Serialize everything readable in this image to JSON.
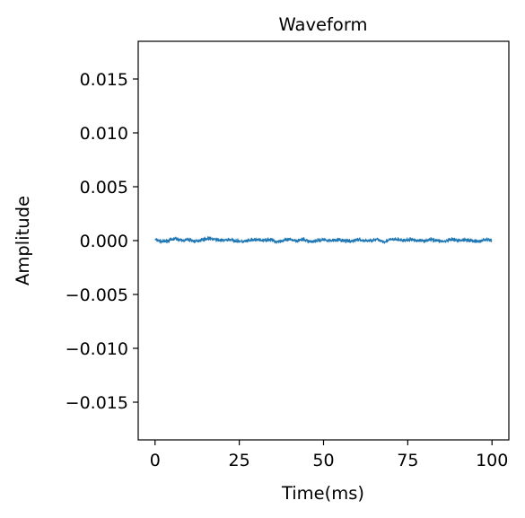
{
  "chart_data": {
    "type": "line",
    "title": "Waveform",
    "xlabel": "Time(ms)",
    "ylabel": "Amplitude",
    "xlim": [
      -5,
      105
    ],
    "ylim": [
      -0.0185,
      0.0185
    ],
    "xticks": [
      0,
      25,
      50,
      75,
      100
    ],
    "xtick_labels": [
      "0",
      "25",
      "50",
      "75",
      "100"
    ],
    "yticks": [
      -0.015,
      -0.01,
      -0.005,
      0.0,
      0.005,
      0.01,
      0.015
    ],
    "ytick_labels": [
      "−0.015",
      "−0.010",
      "−0.005",
      "0.000",
      "0.005",
      "0.010",
      "0.015"
    ],
    "grid": false,
    "series": [
      {
        "color": "#1f77b4",
        "x": [
          0,
          2,
          4,
          6,
          8,
          10,
          12,
          14,
          16,
          18,
          20,
          22,
          24,
          26,
          28,
          30,
          32,
          34,
          36,
          38,
          40,
          42,
          44,
          46,
          48,
          50,
          52,
          54,
          56,
          58,
          60,
          62,
          64,
          66,
          68,
          70,
          72,
          74,
          76,
          78,
          80,
          82,
          84,
          86,
          88,
          90,
          92,
          94,
          96,
          98,
          100
        ],
        "values": [
          0.0001,
          -0.0001,
          0.0,
          0.0002,
          0.0,
          0.0001,
          -0.0001,
          0.0001,
          0.0002,
          0.0001,
          0.0,
          0.0001,
          0.0,
          -0.0001,
          0.0,
          0.0001,
          0.0,
          0.0001,
          -0.0001,
          0.0,
          0.0001,
          0.0,
          0.0001,
          -0.0001,
          0.0,
          0.0001,
          0.0,
          0.0001,
          0.0,
          -0.0001,
          0.0001,
          0.0,
          0.0,
          0.0001,
          -0.0001,
          0.0001,
          0.0001,
          0.0,
          0.0001,
          0.0,
          0.0,
          0.0001,
          0.0,
          -0.0001,
          0.0001,
          0.0,
          0.0001,
          0.0,
          -0.0001,
          0.0001,
          0.0
        ]
      }
    ]
  }
}
